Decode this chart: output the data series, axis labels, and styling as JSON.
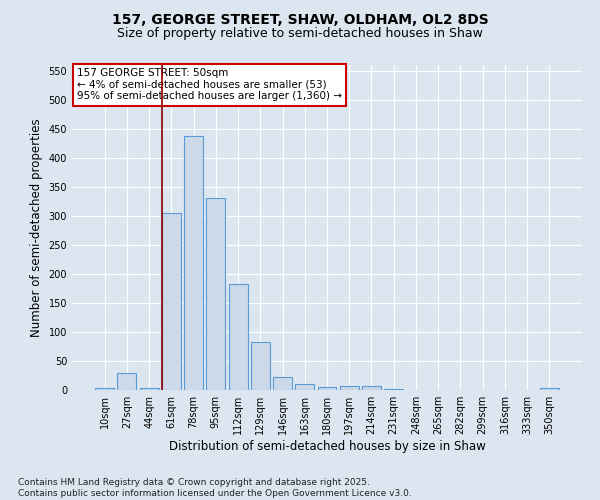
{
  "title_line1": "157, GEORGE STREET, SHAW, OLDHAM, OL2 8DS",
  "title_line2": "Size of property relative to semi-detached houses in Shaw",
  "xlabel": "Distribution of semi-detached houses by size in Shaw",
  "ylabel": "Number of semi-detached properties",
  "categories": [
    "10sqm",
    "27sqm",
    "44sqm",
    "61sqm",
    "78sqm",
    "95sqm",
    "112sqm",
    "129sqm",
    "146sqm",
    "163sqm",
    "180sqm",
    "197sqm",
    "214sqm",
    "231sqm",
    "248sqm",
    "265sqm",
    "282sqm",
    "299sqm",
    "316sqm",
    "333sqm",
    "350sqm"
  ],
  "values": [
    3,
    30,
    3,
    305,
    437,
    330,
    183,
    82,
    22,
    10,
    6,
    7,
    7,
    2,
    0,
    0,
    0,
    0,
    0,
    0,
    3
  ],
  "bar_color": "#ccd9e8",
  "bar_edge_color": "#5b9bd5",
  "bar_edge_width": 0.8,
  "red_line_x": 2.575,
  "annotation_line1": "157 GEORGE STREET: 50sqm",
  "annotation_line2": "← 4% of semi-detached houses are smaller (53)",
  "annotation_line3": "95% of semi-detached houses are larger (1,360) →",
  "annotation_box_color": "#ffffff",
  "annotation_box_edge_color": "#cc0000",
  "background_color": "#dce6f0",
  "plot_background_color": "#dce6f0",
  "grid_color": "#ffffff",
  "ylim": [
    0,
    560
  ],
  "yticks": [
    0,
    50,
    100,
    150,
    200,
    250,
    300,
    350,
    400,
    450,
    500,
    550
  ],
  "footer_line1": "Contains HM Land Registry data © Crown copyright and database right 2025.",
  "footer_line2": "Contains public sector information licensed under the Open Government Licence v3.0.",
  "title_fontsize": 10,
  "subtitle_fontsize": 9,
  "tick_fontsize": 7,
  "xlabel_fontsize": 8.5,
  "ylabel_fontsize": 8.5,
  "footer_fontsize": 6.5,
  "annotation_fontsize": 7.5
}
